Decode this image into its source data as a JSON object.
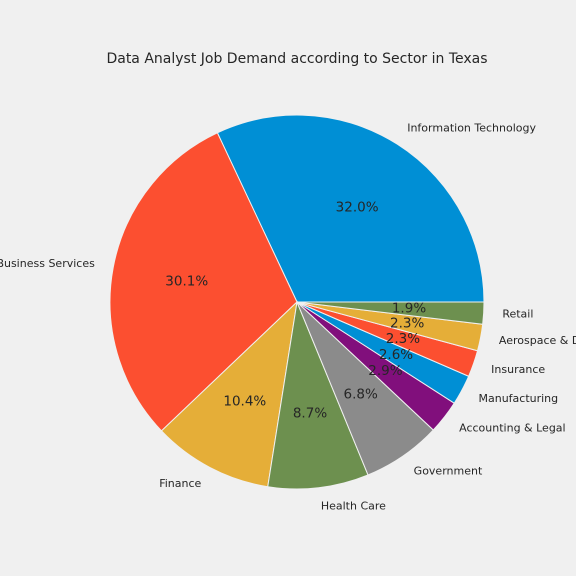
{
  "chart_data": {
    "type": "pie",
    "title": "Data Analyst Job Demand according to Sector in Texas",
    "slices": [
      {
        "label": "Information Technology",
        "value": 32.0,
        "pct_label": "32.0%",
        "color": "#008fd5"
      },
      {
        "label": "Business Services",
        "value": 30.1,
        "pct_label": "30.1%",
        "color": "#fc4f30"
      },
      {
        "label": "Finance",
        "value": 10.4,
        "pct_label": "10.4%",
        "color": "#e5ae38"
      },
      {
        "label": "Health Care",
        "value": 8.7,
        "pct_label": "8.7%",
        "color": "#6d904f"
      },
      {
        "label": "Government",
        "value": 6.8,
        "pct_label": "6.8%",
        "color": "#8b8b8b"
      },
      {
        "label": "Accounting & Legal",
        "value": 2.9,
        "pct_label": "2.9%",
        "color": "#810f7c"
      },
      {
        "label": "Manufacturing",
        "value": 2.6,
        "pct_label": "2.6%",
        "color": "#008fd5"
      },
      {
        "label": "Insurance",
        "value": 2.3,
        "pct_label": "2.3%",
        "color": "#fc4f30"
      },
      {
        "label": "Aerospace & Defense",
        "value": 2.3,
        "pct_label": "2.3%",
        "color": "#e5ae38"
      },
      {
        "label": "Retail",
        "value": 1.9,
        "pct_label": "1.9%",
        "color": "#6d904f"
      }
    ],
    "start_angle_deg": 0,
    "direction": "counterclockwise",
    "background": "#f0f0f0",
    "edge_color": "#f0f0f0"
  }
}
